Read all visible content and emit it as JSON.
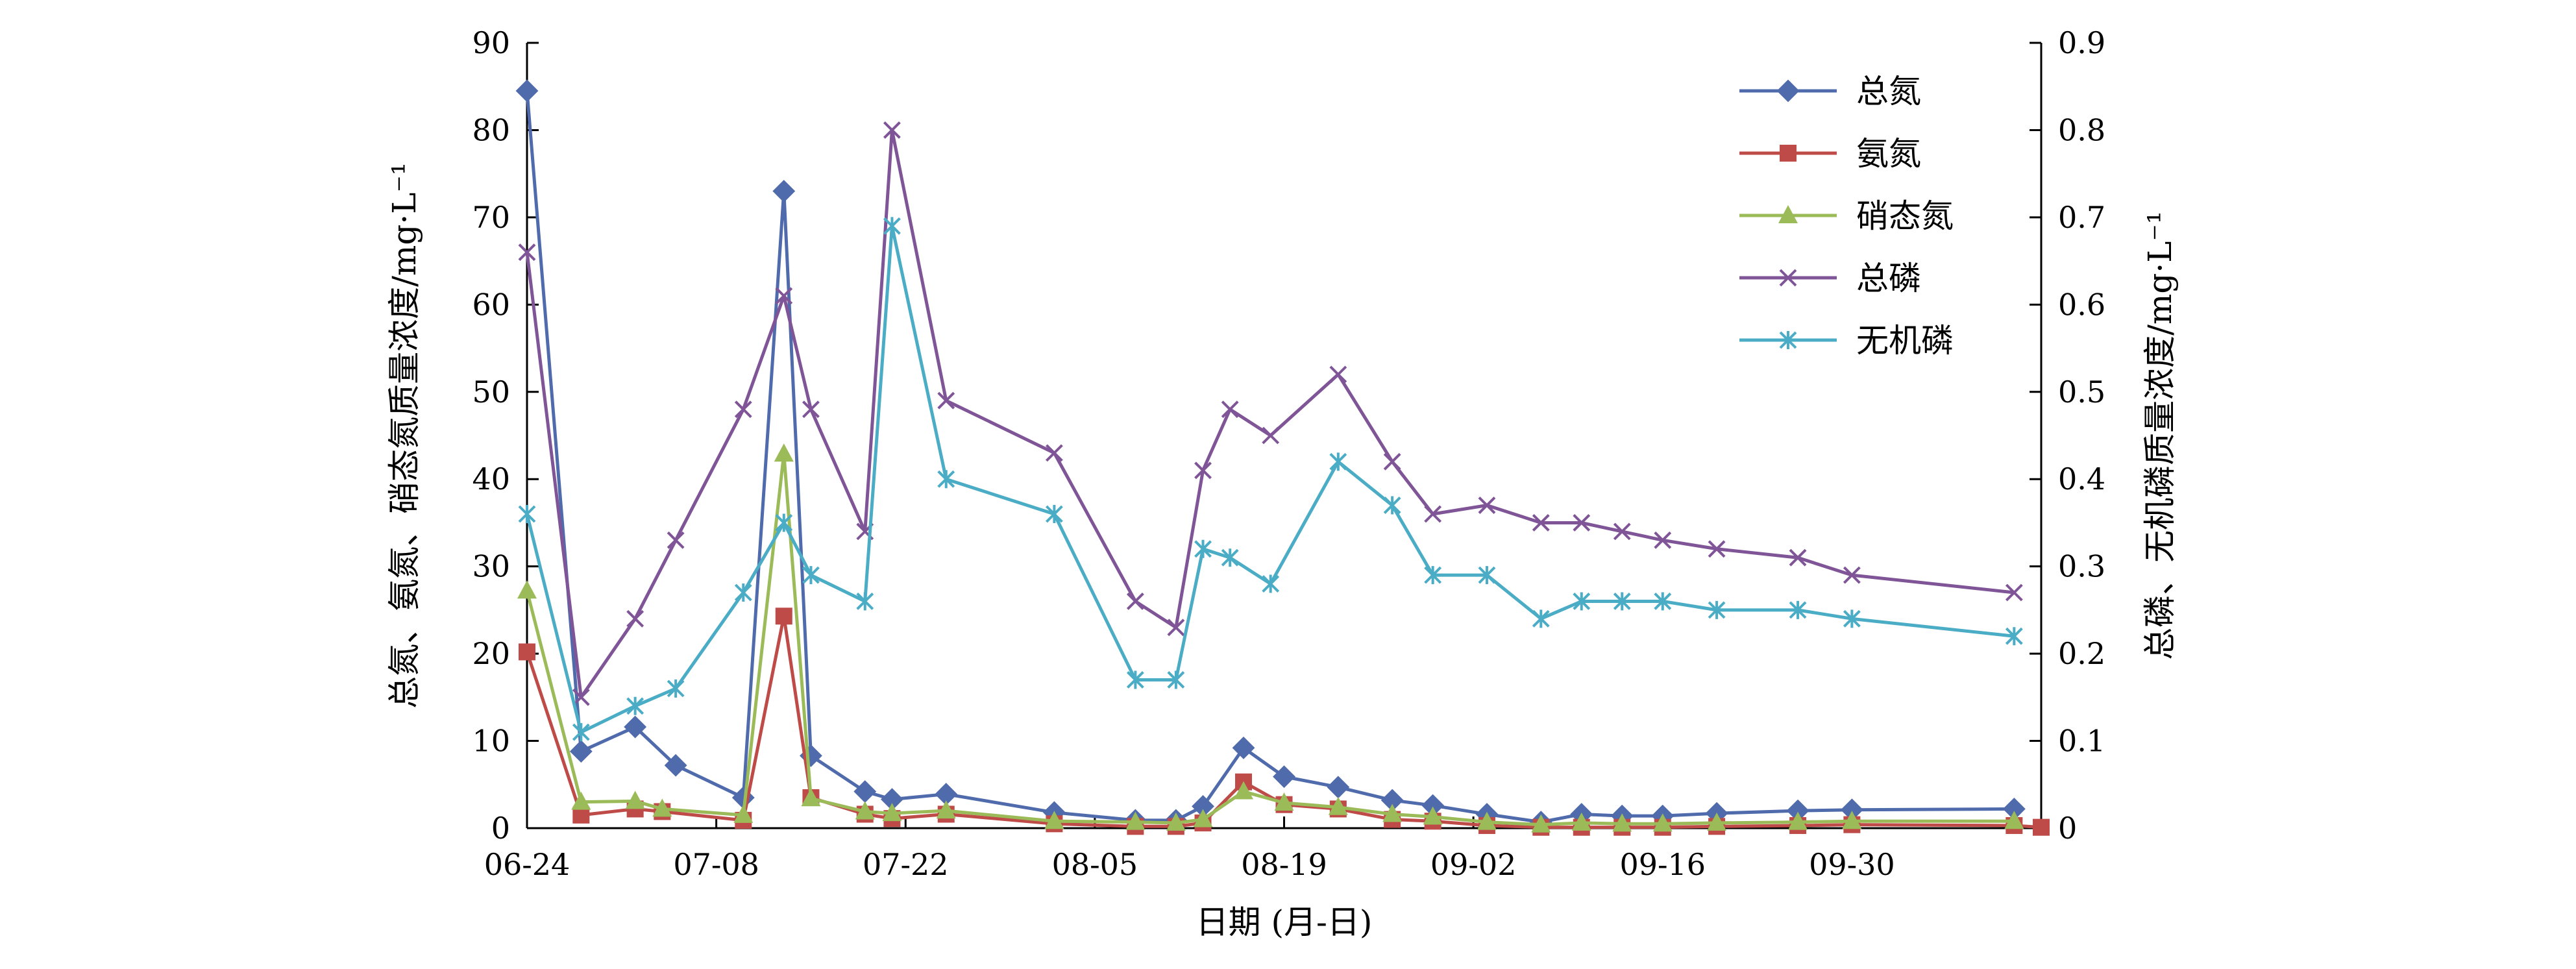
{
  "chart_data": {
    "type": "line",
    "xlabel": "日期 (月-日)",
    "ylabel_left": "总氮、氨氮、硝态氮质量浓度/mg·L⁻¹",
    "ylabel_right": "总磷、无机磷质量浓度/mg·L⁻¹",
    "x_unit": "days",
    "x_tick_labels": [
      "06-24",
      "07-08",
      "07-22",
      "08-05",
      "08-19",
      "09-02",
      "09-16",
      "09-30"
    ],
    "x_tick_values": [
      0,
      14,
      28,
      42,
      56,
      70,
      84,
      98
    ],
    "xlim": [
      0,
      112
    ],
    "ylim_left": [
      0,
      90
    ],
    "yticks_left": [
      "0",
      "10",
      "20",
      "30",
      "40",
      "50",
      "60",
      "70",
      "80",
      "90"
    ],
    "ylim_right": [
      0,
      0.9
    ],
    "yticks_right": [
      "0",
      "0.1",
      "0.2",
      "0.3",
      "0.4",
      "0.5",
      "0.6",
      "0.7",
      "0.8",
      "0.9"
    ],
    "grid": false,
    "legend_position": "top-right",
    "series": [
      {
        "name": "总氮",
        "axis": "left",
        "color": "#4F6BAC",
        "marker": "diamond",
        "x": [
          0,
          4,
          8,
          11,
          16,
          19,
          21,
          25,
          27,
          31,
          39,
          45,
          48,
          50,
          53,
          56,
          60,
          64,
          67,
          71,
          75,
          78,
          81,
          84,
          88,
          94,
          98,
          110
        ],
        "y": [
          84.5,
          8.8,
          11.6,
          7.2,
          3.5,
          73,
          8.3,
          4.2,
          3.3,
          3.9,
          1.8,
          0.9,
          0.9,
          2.5,
          9.2,
          5.9,
          4.7,
          3.2,
          2.6,
          1.6,
          0.7,
          1.6,
          1.4,
          1.4,
          1.7,
          2.0,
          2.1,
          2.2
        ]
      },
      {
        "name": "氨氮",
        "axis": "left",
        "color": "#BE4B48",
        "marker": "square",
        "x": [
          0,
          4,
          8,
          10,
          16,
          19,
          21,
          25,
          27,
          31,
          39,
          45,
          48,
          50,
          53,
          56,
          60,
          64,
          67,
          71,
          75,
          78,
          81,
          84,
          88,
          94,
          98,
          110,
          112
        ],
        "y": [
          20.2,
          1.5,
          2.2,
          1.9,
          0.9,
          24.3,
          3.5,
          1.6,
          1.1,
          1.6,
          0.5,
          0.2,
          0.2,
          0.6,
          5.3,
          2.7,
          2.2,
          1.0,
          0.8,
          0.3,
          0.1,
          0.1,
          0.1,
          0.1,
          0.2,
          0.3,
          0.4,
          0.3,
          0.1
        ]
      },
      {
        "name": "硝态氮",
        "axis": "left",
        "color": "#9BBB59",
        "marker": "triangle",
        "x": [
          0,
          4,
          8,
          10,
          16,
          19,
          21,
          25,
          27,
          31,
          39,
          45,
          48,
          50,
          53,
          56,
          60,
          64,
          67,
          71,
          75,
          78,
          81,
          84,
          88,
          94,
          98,
          110
        ],
        "y": [
          27.2,
          3.0,
          3.1,
          2.2,
          1.5,
          42.9,
          3.4,
          1.9,
          1.7,
          2.0,
          0.8,
          0.7,
          0.6,
          1.0,
          4.2,
          2.9,
          2.4,
          1.6,
          1.3,
          0.7,
          0.4,
          0.6,
          0.5,
          0.5,
          0.6,
          0.7,
          0.8,
          0.8
        ]
      },
      {
        "name": "总磷",
        "axis": "right",
        "color": "#7F5597",
        "marker": "x",
        "x": [
          0,
          4,
          8,
          11,
          16,
          19,
          21,
          25,
          27,
          31,
          39,
          45,
          48,
          50,
          52,
          55,
          60,
          64,
          67,
          71,
          75,
          78,
          81,
          84,
          88,
          94,
          98,
          110
        ],
        "y": [
          0.66,
          0.15,
          0.24,
          0.33,
          0.48,
          0.61,
          0.48,
          0.34,
          0.8,
          0.49,
          0.43,
          0.26,
          0.23,
          0.41,
          0.48,
          0.45,
          0.52,
          0.42,
          0.36,
          0.37,
          0.35,
          0.35,
          0.34,
          0.33,
          0.32,
          0.31,
          0.29,
          0.27
        ]
      },
      {
        "name": "无机磷",
        "axis": "right",
        "color": "#4BACC6",
        "marker": "star",
        "x": [
          0,
          4,
          8,
          11,
          16,
          19,
          21,
          25,
          27,
          31,
          39,
          45,
          48,
          50,
          52,
          55,
          60,
          64,
          67,
          71,
          75,
          78,
          81,
          84,
          88,
          94,
          98,
          110
        ],
        "y": [
          0.36,
          0.11,
          0.14,
          0.16,
          0.27,
          0.35,
          0.29,
          0.26,
          0.69,
          0.4,
          0.36,
          0.17,
          0.17,
          0.32,
          0.31,
          0.28,
          0.42,
          0.37,
          0.29,
          0.29,
          0.24,
          0.26,
          0.26,
          0.26,
          0.25,
          0.25,
          0.24,
          0.22
        ]
      }
    ]
  }
}
